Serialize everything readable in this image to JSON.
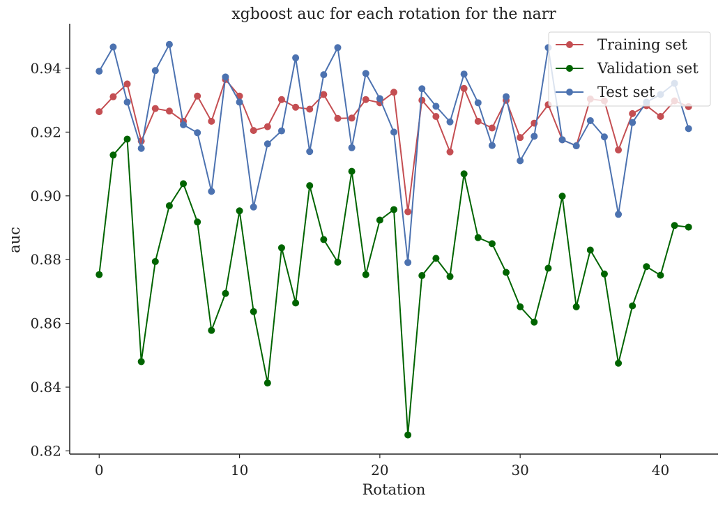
{
  "chart_data": {
    "type": "line",
    "title": "xgboost auc for each rotation for the narr",
    "xlabel": "Rotation",
    "ylabel": "auc",
    "xlim": [
      -2.1,
      44.1
    ],
    "ylim": [
      0.819,
      0.954
    ],
    "xticks": [
      0,
      10,
      20,
      30,
      40
    ],
    "yticks": [
      0.82,
      0.84,
      0.86,
      0.88,
      0.9,
      0.92,
      0.94
    ],
    "ytick_labels": [
      "0.82",
      "0.84",
      "0.86",
      "0.88",
      "0.90",
      "0.92",
      "0.94"
    ],
    "grid": false,
    "legend_position": "top-right",
    "x": [
      0,
      1,
      2,
      3,
      4,
      5,
      6,
      7,
      8,
      9,
      10,
      11,
      12,
      13,
      14,
      15,
      16,
      17,
      18,
      19,
      20,
      21,
      22,
      23,
      24,
      25,
      26,
      27,
      28,
      29,
      30,
      31,
      32,
      33,
      34,
      35,
      36,
      37,
      38,
      39,
      40,
      41,
      42
    ],
    "series": [
      {
        "name": "Training set",
        "color": "#c44e52",
        "values": [
          0.9264,
          0.9311,
          0.9351,
          0.9172,
          0.9274,
          0.9266,
          0.9234,
          0.9313,
          0.9234,
          0.9365,
          0.9313,
          0.9205,
          0.9217,
          0.9302,
          0.9278,
          0.9272,
          0.9318,
          0.9243,
          0.9244,
          0.9302,
          0.9292,
          0.9325,
          0.895,
          0.93,
          0.9249,
          0.9138,
          0.9337,
          0.9234,
          0.9213,
          0.93,
          0.9183,
          0.9228,
          0.9286,
          0.9176,
          0.9157,
          0.9304,
          0.9298,
          0.9144,
          0.9258,
          0.9283,
          0.9249,
          0.9298,
          0.928
        ]
      },
      {
        "name": "Validation set",
        "color": "#006400",
        "values": [
          0.8753,
          0.9128,
          0.9178,
          0.848,
          0.8794,
          0.8969,
          0.9038,
          0.8918,
          0.8578,
          0.8694,
          0.8953,
          0.8637,
          0.8413,
          0.8837,
          0.8664,
          0.9032,
          0.8863,
          0.8792,
          0.9077,
          0.8753,
          0.8924,
          0.8957,
          0.825,
          0.875,
          0.8804,
          0.8747,
          0.9069,
          0.8869,
          0.885,
          0.876,
          0.8652,
          0.8604,
          0.8773,
          0.8999,
          0.8652,
          0.883,
          0.8755,
          0.8475,
          0.8655,
          0.8778,
          0.8751,
          0.8907,
          0.8902
        ]
      },
      {
        "name": "Test set",
        "color": "#4c72b0",
        "values": [
          0.9391,
          0.9467,
          0.9294,
          0.9149,
          0.9393,
          0.9475,
          0.9223,
          0.9198,
          0.9014,
          0.9373,
          0.9294,
          0.8965,
          0.9163,
          0.9204,
          0.9433,
          0.9139,
          0.938,
          0.9465,
          0.9151,
          0.9384,
          0.9305,
          0.92,
          0.8791,
          0.9336,
          0.9281,
          0.9232,
          0.9382,
          0.9292,
          0.9158,
          0.9311,
          0.911,
          0.9187,
          0.9465,
          0.9176,
          0.9157,
          0.9236,
          0.9185,
          0.8942,
          0.923,
          0.9294,
          0.9318,
          0.9353,
          0.9211
        ]
      }
    ]
  }
}
